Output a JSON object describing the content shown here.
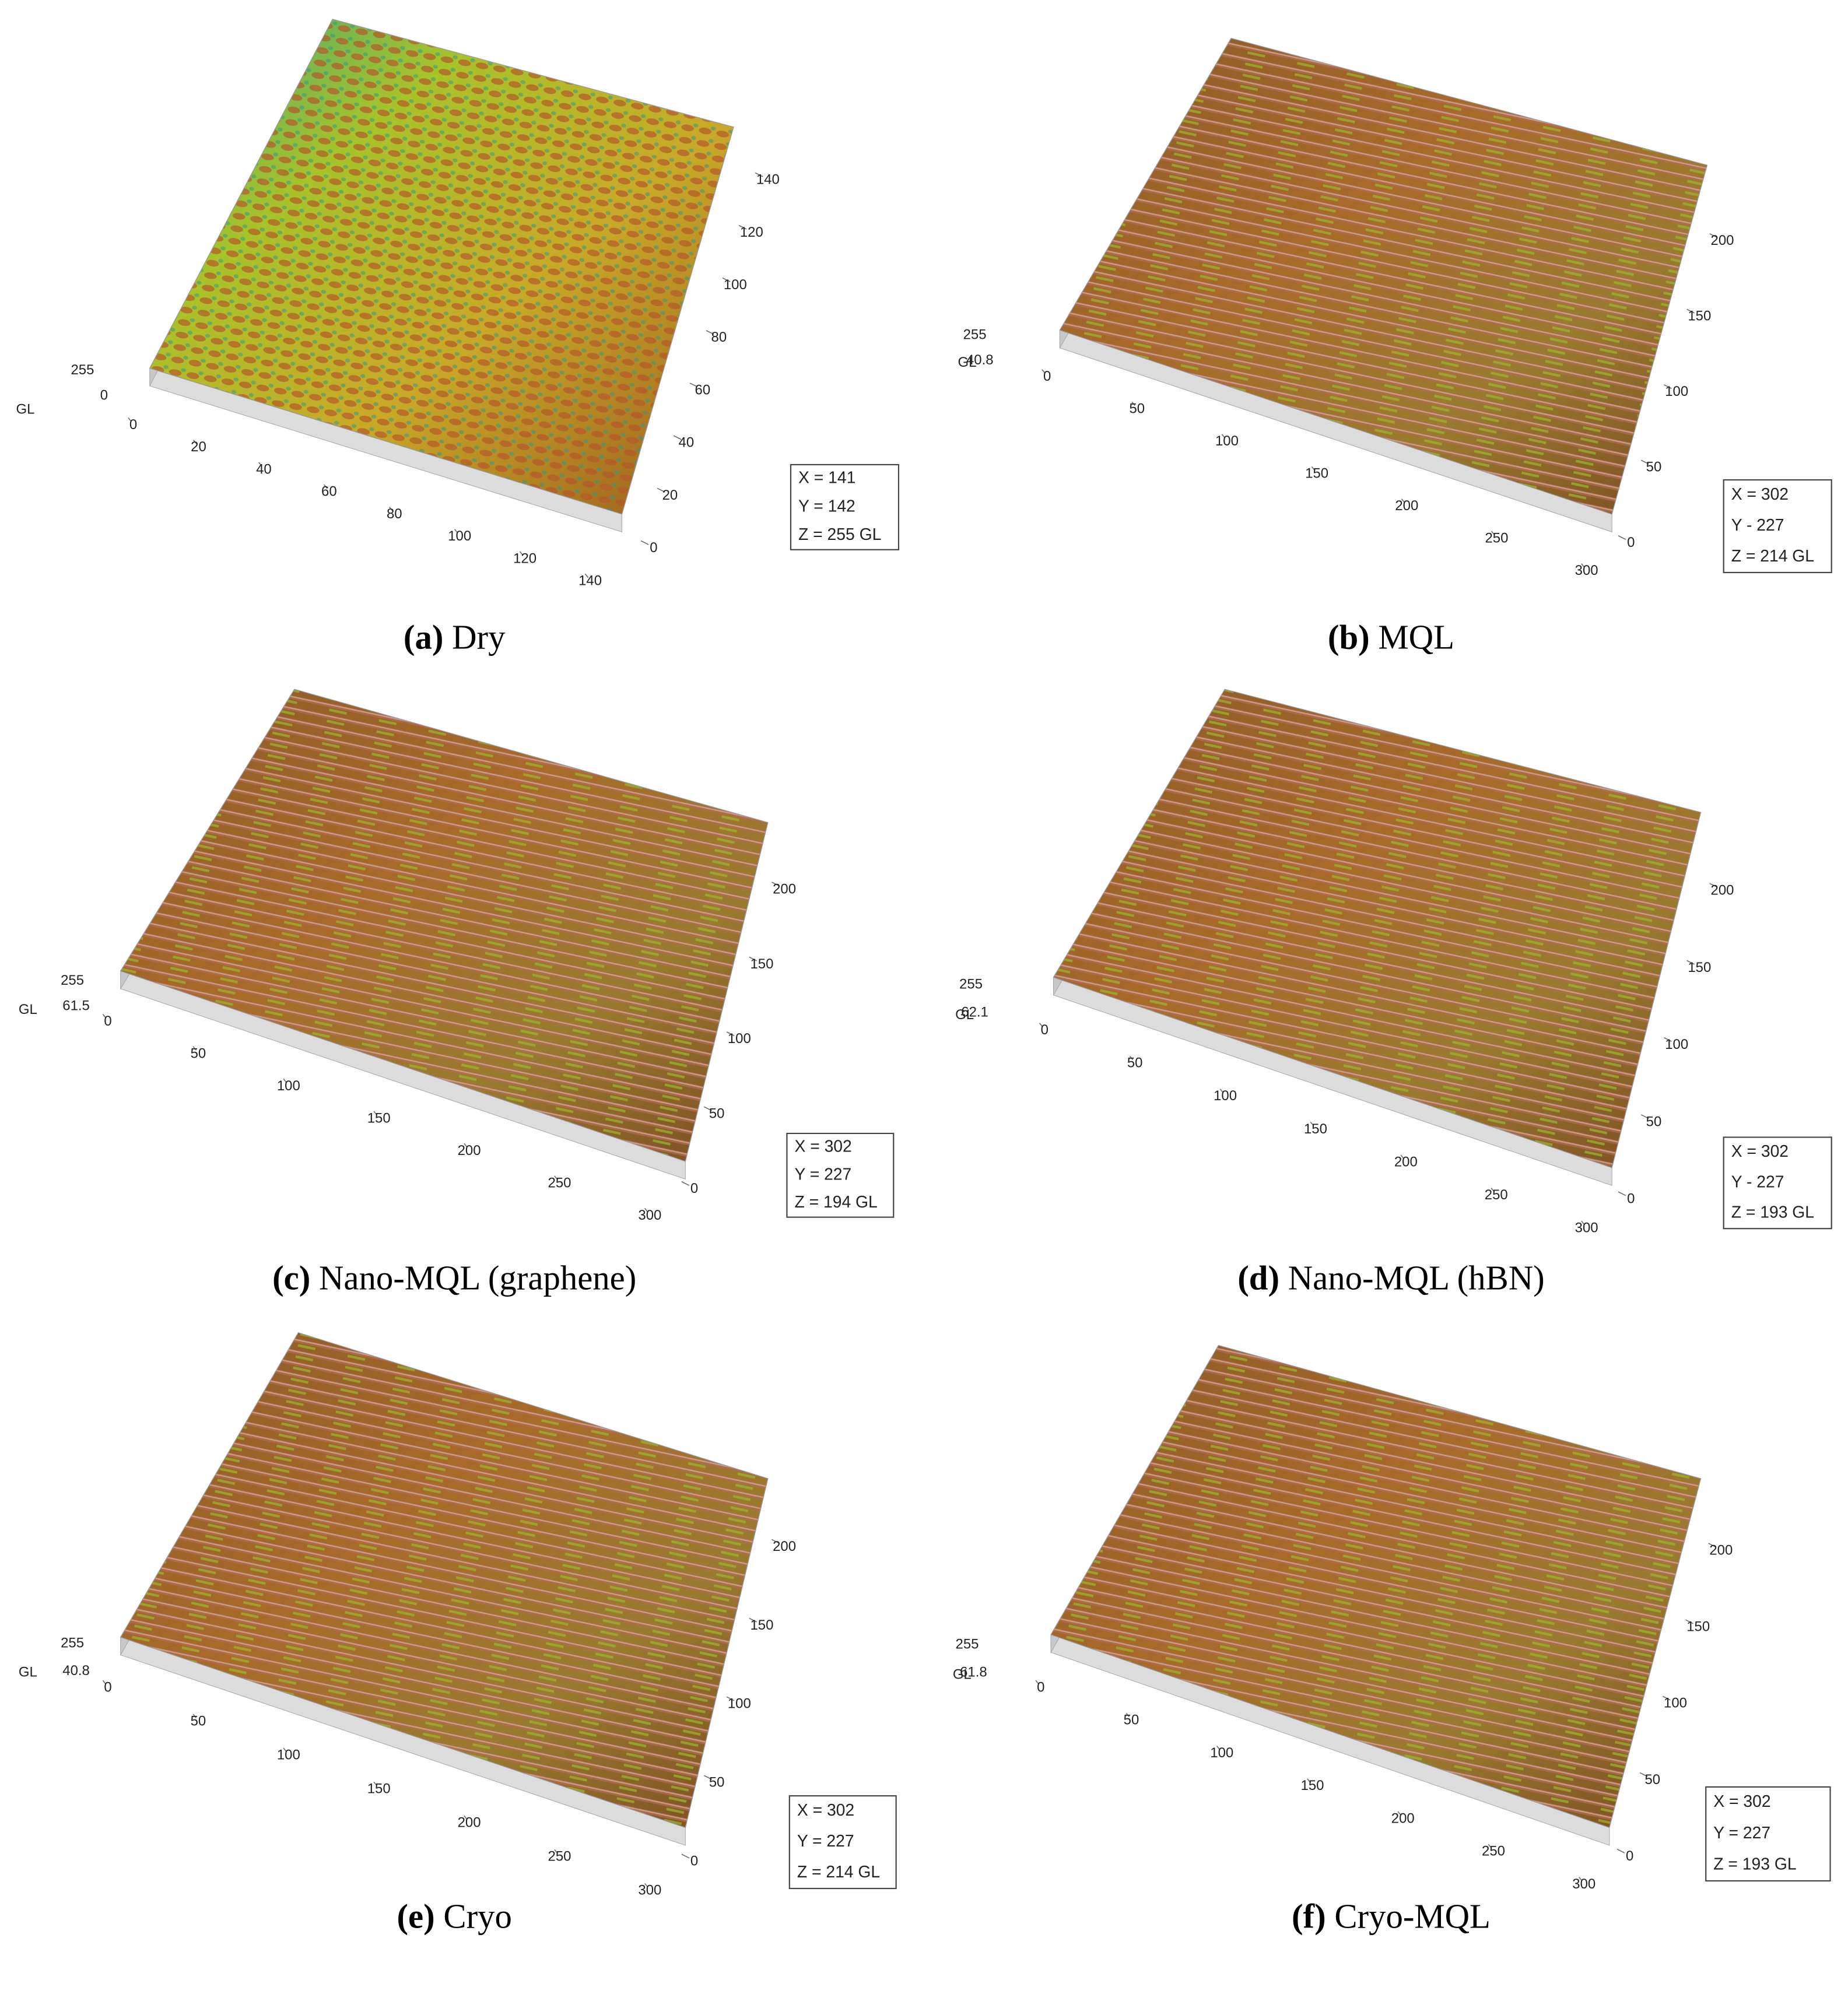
{
  "panels": [
    {
      "tag": "(a)",
      "caption": "Dry",
      "z_labels": [
        "255",
        "0"
      ],
      "z_axis": "GL",
      "x_ticks": [
        "0",
        "20",
        "40",
        "60",
        "80",
        "100",
        "120",
        "140"
      ],
      "y_ticks": [
        "0",
        "20",
        "40",
        "60",
        "80",
        "100",
        "120",
        "140"
      ],
      "readout": [
        "X = 141",
        "Y = 142",
        "Z = 255 GL"
      ]
    },
    {
      "tag": "(b)",
      "caption": "MQL",
      "z_labels": [
        "255",
        "40.8"
      ],
      "z_axis": "GL",
      "x_ticks": [
        "0",
        "50",
        "100",
        "150",
        "200",
        "250",
        "300"
      ],
      "y_ticks": [
        "0",
        "50",
        "100",
        "150",
        "200"
      ],
      "readout": [
        "X = 302",
        "Y - 227",
        "Z = 214 GL"
      ]
    },
    {
      "tag": "(c)",
      "caption": "Nano-MQL (graphene)",
      "z_labels": [
        "255",
        "61.5"
      ],
      "z_axis": "GL",
      "x_ticks": [
        "0",
        "50",
        "100",
        "150",
        "200",
        "250",
        "300"
      ],
      "y_ticks": [
        "0",
        "50",
        "100",
        "150",
        "200"
      ],
      "readout": [
        "X = 302",
        "Y = 227",
        "Z = 194 GL"
      ]
    },
    {
      "tag": "(d)",
      "caption": "Nano-MQL (hBN)",
      "z_labels": [
        "255",
        "62.1"
      ],
      "z_axis": "GL",
      "x_ticks": [
        "0",
        "50",
        "100",
        "150",
        "200",
        "250",
        "300"
      ],
      "y_ticks": [
        "0",
        "50",
        "100",
        "150",
        "200"
      ],
      "readout": [
        "X = 302",
        "Y - 227",
        "Z = 193 GL"
      ]
    },
    {
      "tag": "(e)",
      "caption": "Cryo",
      "z_labels": [
        "255",
        "40.8"
      ],
      "z_axis": "GL",
      "x_ticks": [
        "0",
        "50",
        "100",
        "150",
        "200",
        "250",
        "300"
      ],
      "y_ticks": [
        "0",
        "50",
        "100",
        "150",
        "200"
      ],
      "readout": [
        "X = 302",
        "Y = 227",
        "Z = 214 GL"
      ]
    },
    {
      "tag": "(f)",
      "caption": "Cryo-MQL",
      "z_labels": [
        "255",
        "61.8"
      ],
      "z_axis": "GL",
      "x_ticks": [
        "0",
        "50",
        "100",
        "150",
        "200",
        "250",
        "300"
      ],
      "y_ticks": [
        "0",
        "50",
        "100",
        "150",
        "200"
      ],
      "readout": [
        "X = 302",
        "Y = 227",
        "Z = 193 GL"
      ]
    }
  ]
}
